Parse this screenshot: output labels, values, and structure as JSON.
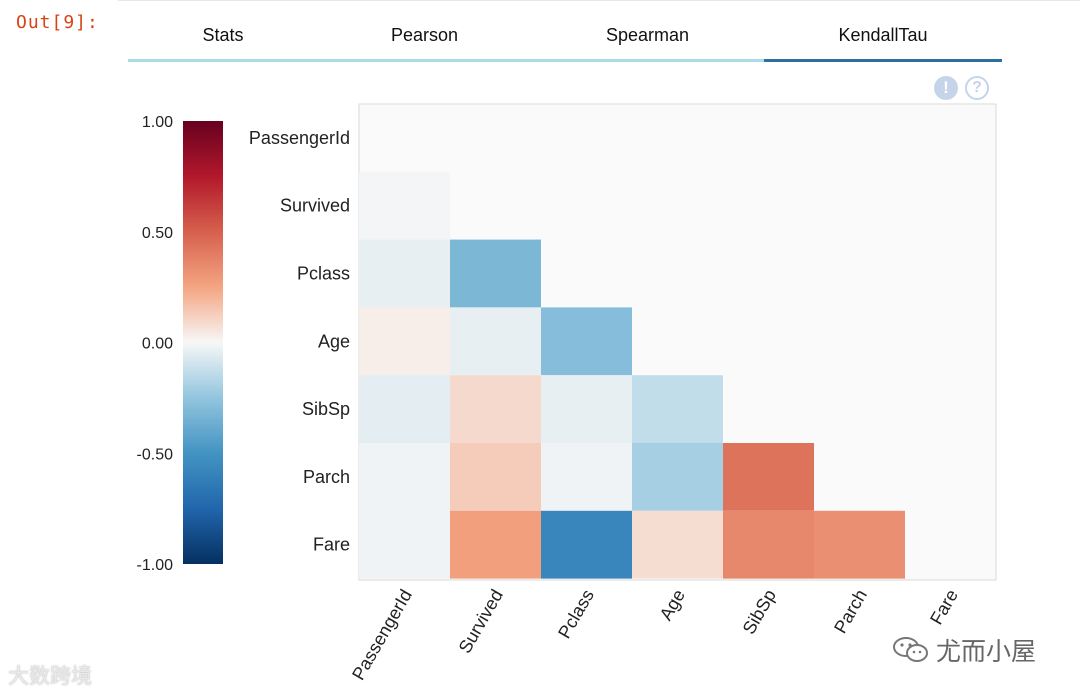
{
  "cell": {
    "prompt": "Out[9]:"
  },
  "tabs": [
    {
      "label": "Stats",
      "active": false
    },
    {
      "label": "Pearson",
      "active": false
    },
    {
      "label": "Spearman",
      "active": false
    },
    {
      "label": "KendallTau",
      "active": true
    }
  ],
  "icons": {
    "info": "!",
    "help": "?"
  },
  "colors": {
    "tab_underline": "#a8dde6",
    "tab_active_underline": "#2d6f9d",
    "prompt": "#d84315",
    "plot_border": "#d9d9d9"
  },
  "watermarks": {
    "left": "大数跨境",
    "right": "尤而小屋"
  },
  "chart_data": {
    "type": "heatmap",
    "title": "",
    "xlabel": "",
    "ylabel": "",
    "rows": [
      "PassengerId",
      "Survived",
      "Pclass",
      "Age",
      "SibSp",
      "Parch",
      "Fare"
    ],
    "columns": [
      "PassengerId",
      "Survived",
      "Pclass",
      "Age",
      "SibSp",
      "Parch",
      "Fare"
    ],
    "mask": "upper triangle including diagonal",
    "values": [
      [
        null,
        null,
        null,
        null,
        null,
        null,
        null
      ],
      [
        -0.01,
        null,
        null,
        null,
        null,
        null,
        null
      ],
      [
        -0.04,
        -0.32,
        null,
        null,
        null,
        null,
        null
      ],
      [
        0.03,
        -0.04,
        -0.29,
        null,
        null,
        null,
        null
      ],
      [
        -0.05,
        0.09,
        -0.04,
        -0.13,
        null,
        null,
        null
      ],
      [
        -0.02,
        0.13,
        -0.02,
        -0.2,
        0.43,
        null,
        null
      ],
      [
        -0.02,
        0.27,
        -0.57,
        0.08,
        0.36,
        0.33,
        null
      ]
    ],
    "colorbar": {
      "min": -1.0,
      "max": 1.0,
      "ticks": [
        "1.00",
        "0.50",
        "0.00",
        "-0.50",
        "-1.00"
      ],
      "colormap": "RdBu_r"
    }
  }
}
